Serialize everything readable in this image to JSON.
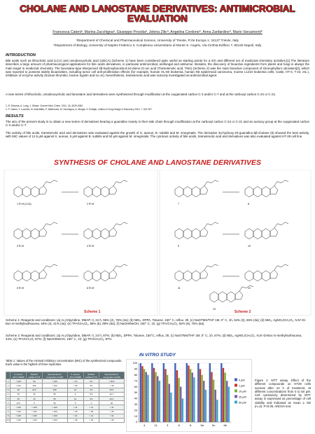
{
  "header": {
    "title": "CHOLANE AND LANOSTANE DERIVATIVES: ANTIMICROBIAL EVALUATION",
    "authors": "Francesca Cateniᵃ, Marina Zacchignaᵃ, Giuseppe Procidaᵃ, Jelena Zilicᵃ, Angelina Cordoneᵇ, Anna Zanfardinoᵇ, Mario Varcamontiᵇ",
    "affiliations": [
      "ᵃDepartment of Chemical and Pharmaceutical Science, University of Trieste, P.zle Europa 1, 34127 Trieste, Italy",
      "ᵇDepartment of Biology, University of Naples Federico II, Complesso Universitario di Monte S. Angelo, Via Cinthia-Edificio 7, 80126 Napoli, Italy"
    ]
  },
  "introduction": {
    "heading": "INTRODUCTION",
    "paragraphs": [
      "Bile acids such as lithocholic acid (LCA) and ursodeoxycholic acid (UDCA) (Scheme 1) have been considered quite useful as starting points for a rich and different set of medicinal chemistry activities.[1] The literature describes a large amount of pharmacological applications for bile acids derivatives, in particular antimicrobial, antifungal and antitumor. Besides, the discovery of bioactive ingredients from plants and fungi is always the main target in medicinal chemistry. The lanostane-type triterpenoid 3β-hydroxylanosta-8,24-diene-21-oic acid (Trametenolic acid, TMA) (Scheme 2) was the main bioactive component of Gloeophyllum odoratum[2], which was reported to possess widely bioactivities, including tumor cell anti-proliferation effects (for example, human HL-60 leukemia, human KB epidermoid carcinoma, murine L1210 leukemia cells, Caski, HT-3, T-24, etc.), inhibition of enzyme activity (human thrombin, bovine trypsin and so on). Nevertheless, trametenolic acid was scarcely investigated as antimicrobial agent.",
      "A new series of lithocholic, ursodeoxycholic and lanostane acid derivatives were synthesized through modification at the oxygenated carbon C-3 and/or C-7 and at the carboxyl carbon C-24 or C-21."
    ],
    "references": [
      "1. R. Sharma, A. Long, J. Gilmer, Current Med. Chem. 2011, 18, 4029-4052.",
      "2. F. Cateni, Y. Lucchini, M. Andolfatto, P. Mattiroumi, M. Zacchigna, A. Morgia, S. Ereiljak, Letters in Drug Design & Discovery 2010, 7, 521-527."
    ]
  },
  "results": {
    "heading": "RESULTS",
    "paragraphs": [
      "The aim of the present study is to obtain a new series of derivatives bearing a guanidine moiety in their side chain through modification at the carboxyl carbon C-24 or C-21 and an acetoxy group at the oxygenated carbon C-3 and/or C-7.",
      "The activity of bile acids, trametenolic acid and derivatives was evaluated against the growth of S. aureus, B. subtilis and M. smegmatis. The derivative 3α-hydroxy-23-guanidino-5β-cholane (6) showed the best activity, with MIC values of 12.5 μM against S. aureus, 5 μM against B. subtilis and 50 μM against M. smegmatis. The cytotoxic activity of bile acids, trametenolic acid and derivatives was also evaluated against HT-29 cell line."
    ]
  },
  "synthesis": {
    "heading": "SYNTHESIS OF CHOLANE AND LANOSTANE DERIVATIVES",
    "compound_labels": [
      "1   R=H (LCA)",
      "2   R=H",
      "3   R=H",
      "4   R=H",
      "5   R=H",
      "6   R=H",
      "7",
      "8",
      "9",
      "10",
      "11",
      "12",
      "13"
    ],
    "scheme_labels": [
      "Scheme 1",
      "Scheme 2"
    ],
    "captions": [
      "Scheme 1: Reagents and conditions: (a) Ac₂O/pyridine, DMAP, rt, 24 h, 96% (2), 78% (2a); (b) NEt₃, DPPA, Toluene, 150° C, reflux, 3h; (c) NaOTMS/THF 1M, 0° C, 1h, 64% (3), 66% (3a); (d) NEt₃, AgNO₃/CH₂Cl₂, N,N’-Di-Boc-S-methylisothiourea, 40% (4), 41% (4a); (e) TFA/CH₂Cl₂, 86% (5), 89% (5a); (f) NaOH/MeOH, 150° C, 1h; (g) TFA/CH₂Cl₂, 82% (6), 76% (6a)",
      "Scheme 2: Reagents and conditions: (a) Ac₂O/pyridine, DMAP, rt, 24 h, 87%; (b) NEt₃, DPPA, Toluene, 150°C, reflux, 3h; (c) NaOTMS/THF 1M, 0° C, 1h, 67%; (d) NEt₃, AgNO₃/CH₂Cl₂, N,N’-Di-Boc-S-methylisothiourea, 44%; (e) TFA/CH₂Cl₂ 87%; (f) NaOH/MeOH, 150° C, 1h; (g) TFA/CH₂Cl₂, 87%"
    ]
  },
  "in_vitro": {
    "heading": "IN VITRO STUDY",
    "table_caption": "Table 1: Values of the minimal inhibitory concentration (MIC) of the synthesized compounds. Each value is the highest of three replicates.",
    "table": {
      "header": [
        "",
        "S. aureus ATCC 6538P",
        "Bacillus subtilis PY79",
        "Mycobacterium smegmatis mc²155",
        "S. aureus ATCC 6538P",
        "Bacillus subtilis PY79",
        "Mycobacterium smegmatis mc²155"
      ],
      "rows": [
        [
          "1",
          "> 100",
          "50",
          "> 100",
          "> 37",
          "5.0",
          "> 35.5"
        ],
        [
          "2",
          "> 100",
          "100",
          "> 100",
          "> 36",
          "50",
          "> 36"
        ],
        [
          "3",
          "25",
          "12.5",
          "100",
          "10",
          "4.3",
          "46.3"
        ],
        [
          "4",
          "25",
          "25",
          "50",
          "6",
          "5.9",
          "20.7"
        ],
        [
          "5",
          "25",
          "10",
          "50",
          "10",
          "3.9",
          "20.2"
        ],
        [
          "6",
          "12.5",
          "5",
          "50",
          "5",
          "2",
          "20"
        ],
        [
          "7",
          "> 100",
          "> 100",
          "> 100",
          "> 41",
          "> 41",
          "> 41"
        ],
        [
          "8",
          "> 100",
          "> 100",
          "> 100",
          "> 36",
          "> 36",
          "> 36"
        ],
        [
          "9",
          "> 100",
          "> 100",
          "> 100",
          "> 41",
          "> 41",
          "> 41"
        ],
        [
          "10",
          "> 100",
          "> 100",
          "> 100",
          "> 46",
          "> 46",
          "> 46"
        ]
      ]
    },
    "figure_caption": "Figure 1: MTT assay. Effect of the different compounds on HT29 cells survival after 24 h of treatment, at different concentrations from 0 to 50 μM. Cell cytotoxicity determined by MTT assay is expressed as percentage of cell viability and indicated as mean ± SD (n=3). P<0.05. ANOVA test.",
    "chart_data": {
      "type": "bar",
      "categories": [
        "4",
        "11",
        "3",
        "5",
        "8",
        "5a",
        "5c",
        "6b"
      ],
      "series": [
        {
          "name": "0 μM",
          "color": "#3f63b8",
          "values": [
            100,
            100,
            100,
            100,
            100,
            100,
            100,
            100
          ]
        },
        {
          "name": "1 μM",
          "color": "#c0392b",
          "values": [
            95,
            92,
            90,
            88,
            96,
            90,
            85,
            92
          ]
        },
        {
          "name": "10 μM",
          "color": "#7fae3e",
          "values": [
            90,
            85,
            80,
            75,
            90,
            80,
            72,
            84
          ]
        },
        {
          "name": "25 μM",
          "color": "#7d5ba6",
          "values": [
            85,
            78,
            65,
            60,
            84,
            70,
            55,
            70
          ]
        },
        {
          "name": "50 μM",
          "color": "#3fa6c8",
          "values": [
            80,
            70,
            50,
            40,
            76,
            55,
            38,
            60
          ]
        }
      ],
      "ylim": [
        0,
        100
      ],
      "yticks": [
        0,
        10,
        20,
        30,
        40,
        50,
        60,
        70,
        80,
        90,
        100
      ],
      "grid": true
    }
  }
}
